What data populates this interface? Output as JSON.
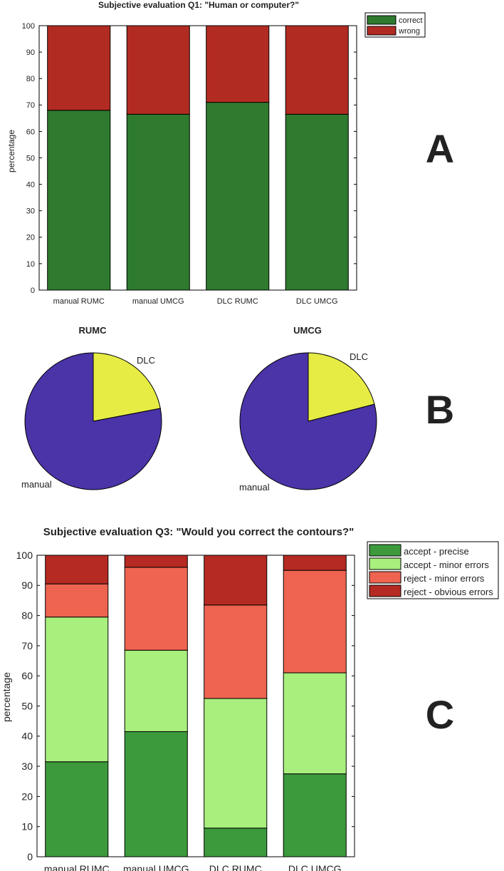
{
  "panel_labels": {
    "a": "A",
    "b": "B",
    "c": "C"
  },
  "chart_data": [
    {
      "id": "A",
      "type": "bar",
      "stacked": true,
      "title": "Subjective evaluation Q1: \"Human or computer?\"",
      "xlabel": "",
      "ylabel": "percentage",
      "categories": [
        "manual RUMC",
        "manual UMCG",
        "DLC RUMC",
        "DLC UMCG"
      ],
      "ylim": [
        0,
        100
      ],
      "yticks": [
        0,
        10,
        20,
        30,
        40,
        50,
        60,
        70,
        80,
        90,
        100
      ],
      "legend_position": "top-right",
      "series": [
        {
          "name": "correct",
          "color": "#2e7a2e",
          "values": [
            68,
            66.5,
            71,
            66.5
          ]
        },
        {
          "name": "wrong",
          "color": "#b22b22",
          "values": [
            32,
            33.5,
            29,
            33.5
          ]
        }
      ]
    },
    {
      "id": "B1",
      "type": "pie",
      "title": "RUMC",
      "slices": [
        {
          "label": "DLC",
          "value": 22,
          "color": "#e6ec44"
        },
        {
          "label": "manual",
          "value": 78,
          "color": "#4b33a8"
        }
      ]
    },
    {
      "id": "B2",
      "type": "pie",
      "title": "UMCG",
      "slices": [
        {
          "label": "DLC",
          "value": 21,
          "color": "#e6ec44"
        },
        {
          "label": "manual",
          "value": 79,
          "color": "#4b33a8"
        }
      ]
    },
    {
      "id": "C",
      "type": "bar",
      "stacked": true,
      "title": "Subjective evaluation Q3: \"Would you correct the contours?\"",
      "xlabel": "",
      "ylabel": "percentage",
      "categories": [
        "manual RUMC",
        "manual UMCG",
        "DLC RUMC",
        "DLC UMCG"
      ],
      "ylim": [
        0,
        100
      ],
      "yticks": [
        0,
        10,
        20,
        30,
        40,
        50,
        60,
        70,
        80,
        90,
        100
      ],
      "legend_position": "top-right",
      "series": [
        {
          "name": "accept - precise",
          "color": "#3c9a3c",
          "values": [
            31.5,
            41.5,
            9.5,
            27.5
          ]
        },
        {
          "name": "accept - minor errors",
          "color": "#a8ef7e",
          "values": [
            48,
            27,
            43,
            33.5
          ]
        },
        {
          "name": "reject - minor errors",
          "color": "#ee6450",
          "values": [
            11,
            27.5,
            31,
            34
          ]
        },
        {
          "name": "reject - obvious errors",
          "color": "#b52a22",
          "values": [
            9.5,
            4,
            16.5,
            5
          ]
        }
      ]
    }
  ]
}
